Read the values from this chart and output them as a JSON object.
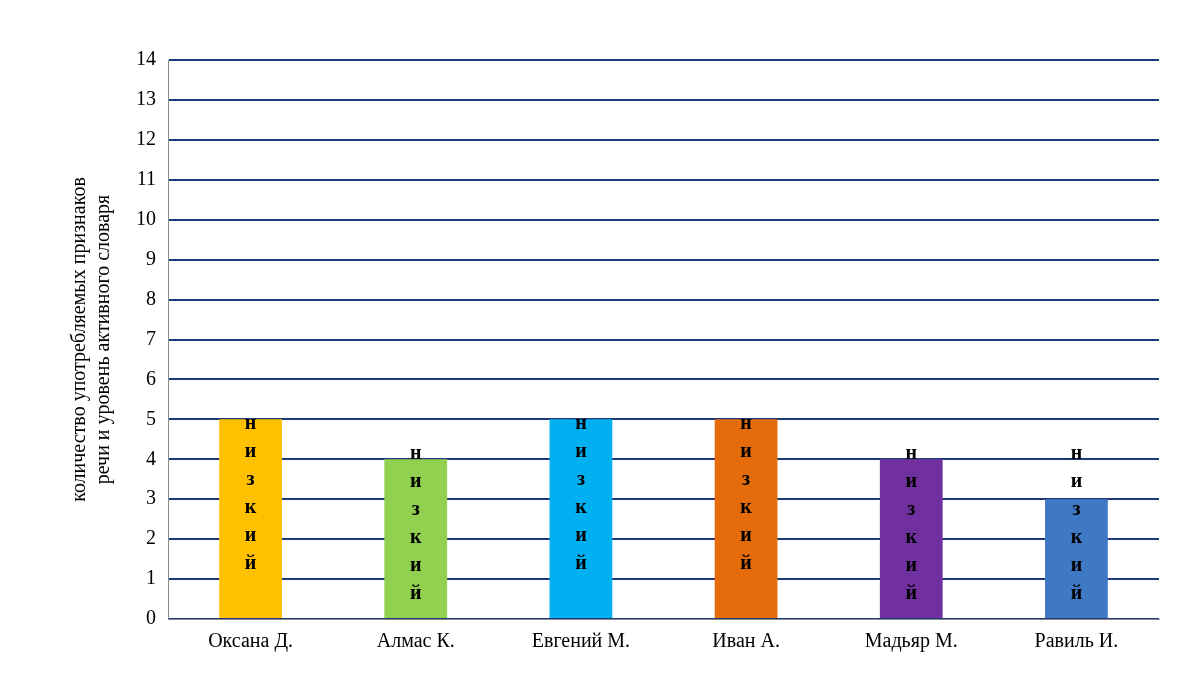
{
  "chart_data": {
    "type": "bar",
    "ylabel": "количество употребляемых признаков речи и уровень активного словаря",
    "categories": [
      "Оксана Д.",
      "Алмас К.",
      "Евгений М.",
      "Иван А.",
      "Мадьяр М.",
      "Равиль И."
    ],
    "values": [
      5,
      4,
      5,
      5,
      4,
      3
    ],
    "colors": [
      "#ffc000",
      "#92d050",
      "#00b0f0",
      "#e46c0a",
      "#7030a0",
      "#3f78c4"
    ],
    "value_labels": [
      "низкий",
      "низкий",
      "низкий",
      "низкий",
      "низкий",
      "низкий"
    ],
    "ylim": [
      0,
      14
    ],
    "yticks": [
      0,
      1,
      2,
      3,
      4,
      5,
      6,
      7,
      8,
      9,
      10,
      11,
      12,
      13,
      14
    ],
    "grid": "y",
    "legend": false
  }
}
